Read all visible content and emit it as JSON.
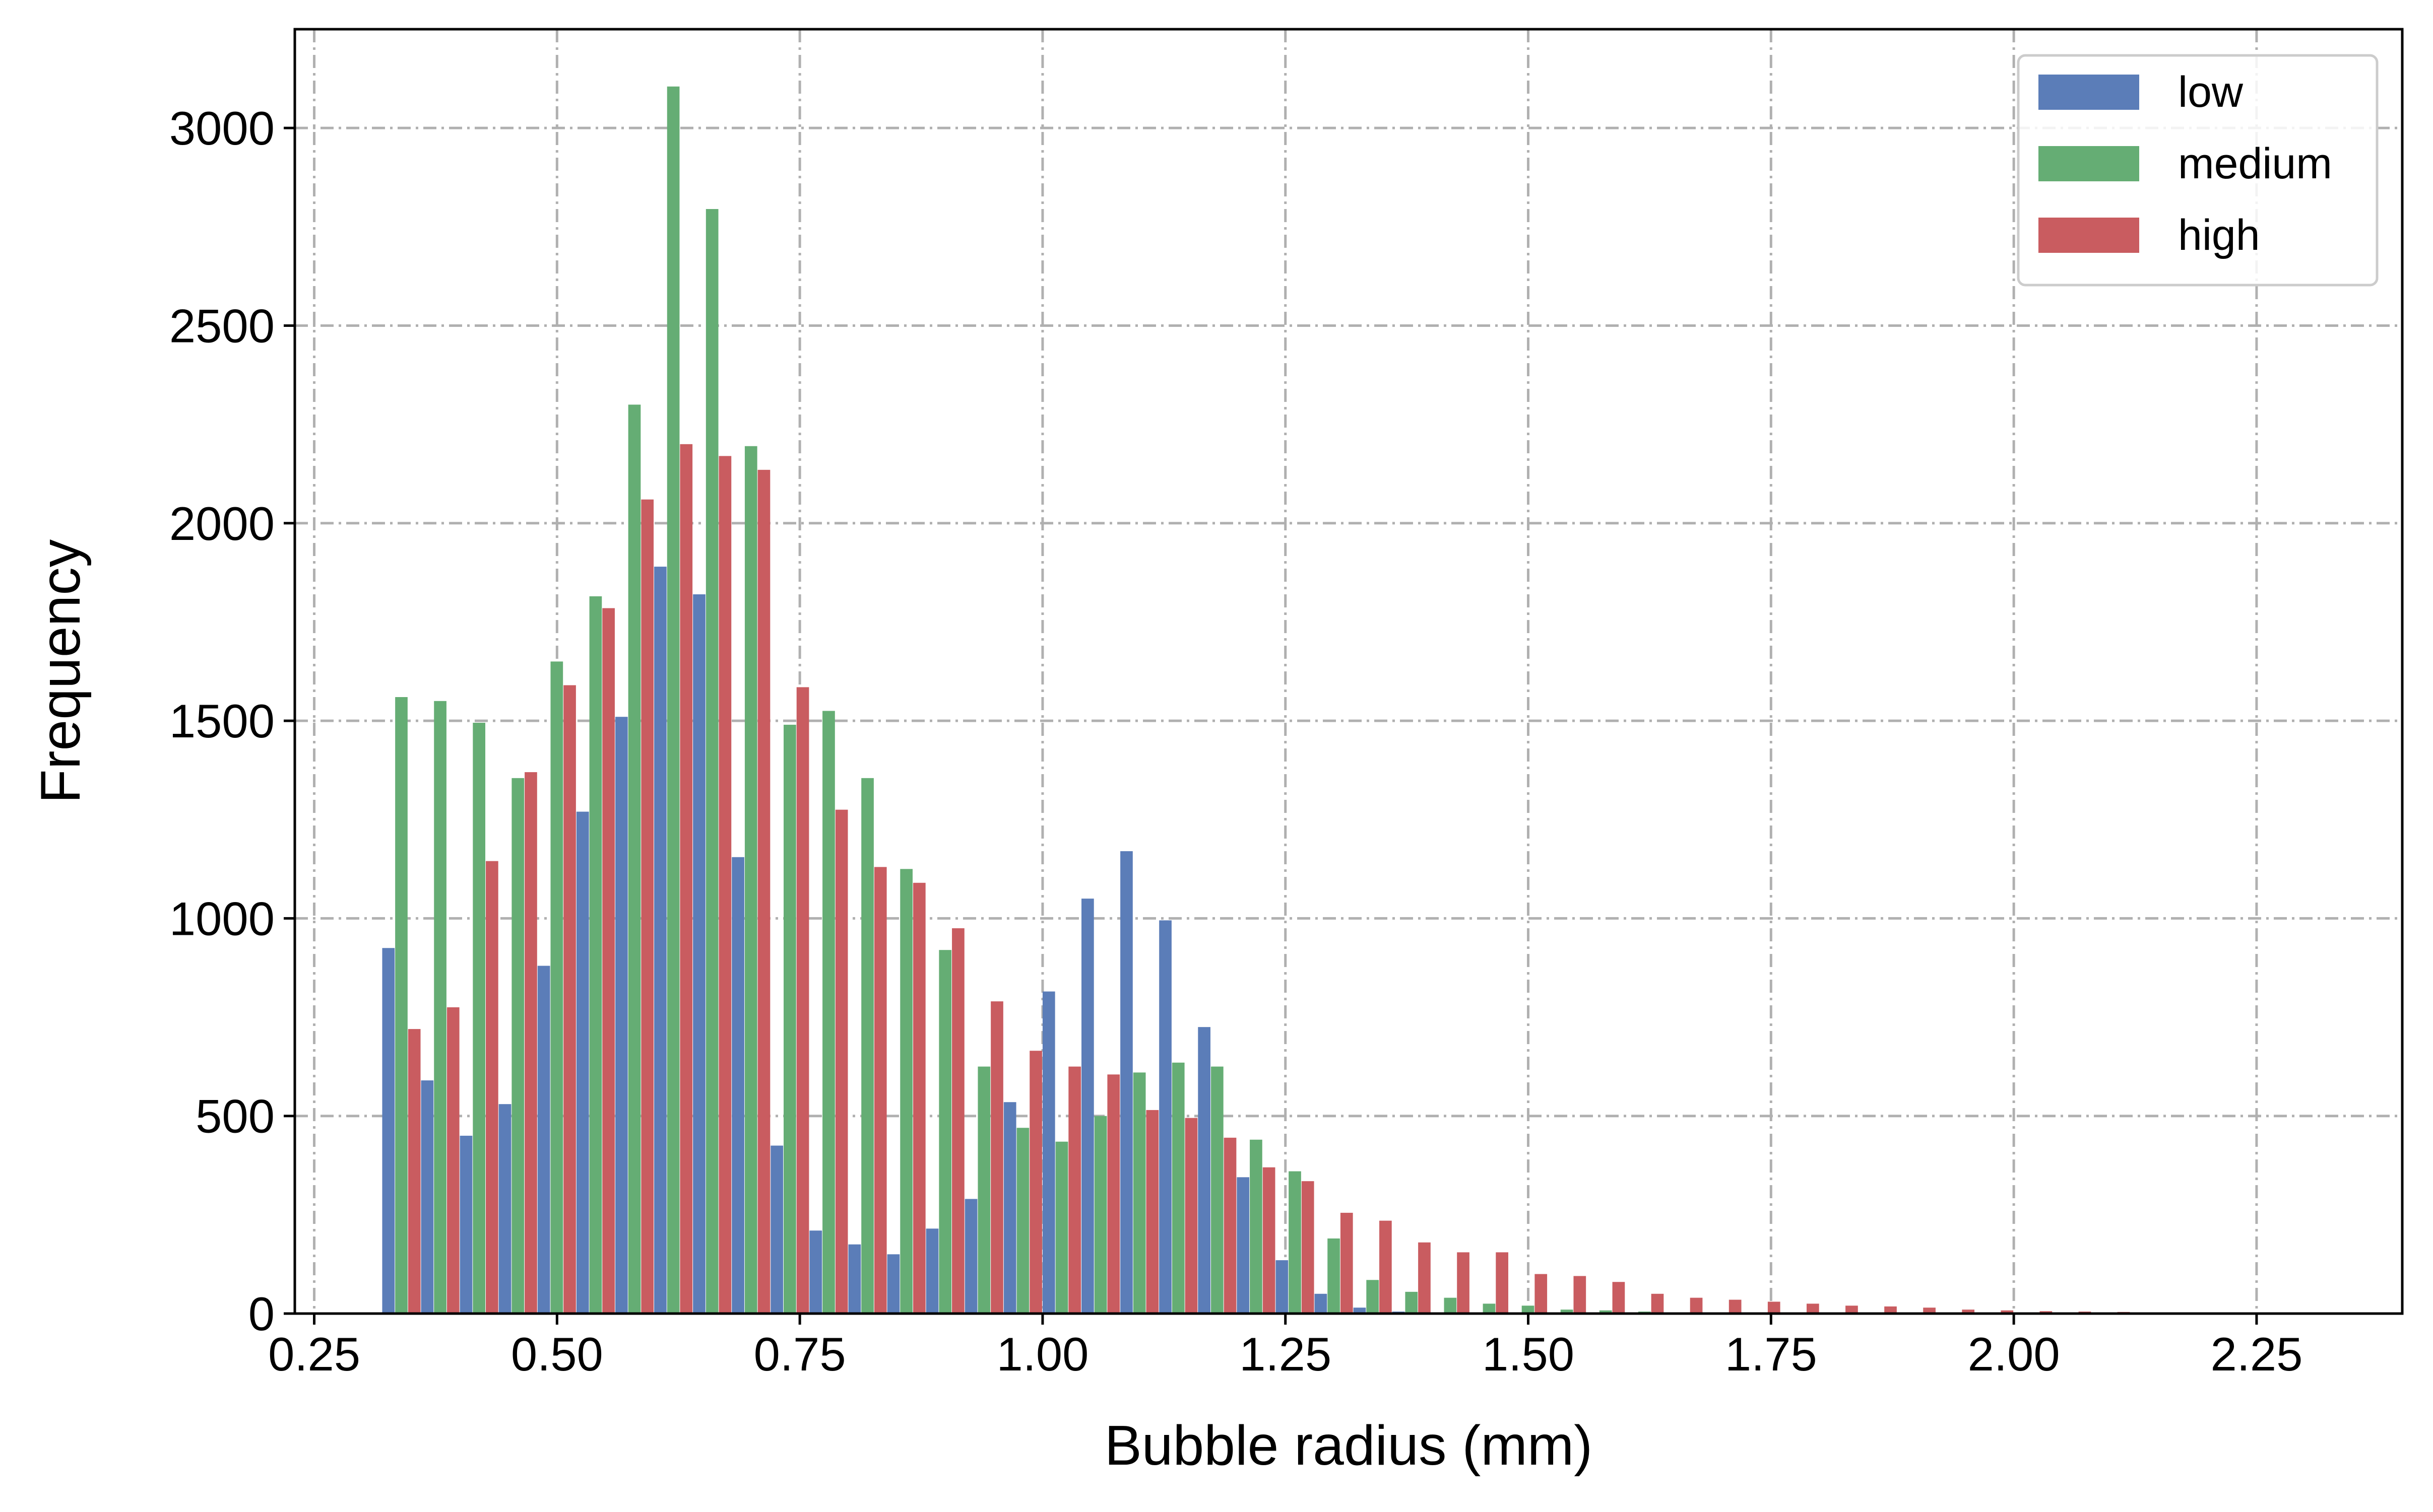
{
  "chart_data": {
    "type": "bar",
    "xlabel": "Bubble radius (mm)",
    "ylabel": "Frequency",
    "xlim": [
      0.23,
      2.4
    ],
    "ylim": [
      0,
      3250
    ],
    "xticks": [
      "0.25",
      "0.50",
      "0.75",
      "1.00",
      "1.25",
      "1.50",
      "1.75",
      "2.00",
      "2.25"
    ],
    "yticks": [
      "0",
      "500",
      "1000",
      "1500",
      "2000",
      "2500",
      "3000"
    ],
    "grid": true,
    "legend_position": "top-right",
    "bin_start": 0.32,
    "bin_width": 0.04,
    "bin_count": 50,
    "series": [
      {
        "name": "low",
        "color": "#5b7db8",
        "values": [
          925,
          590,
          450,
          530,
          880,
          1270,
          1510,
          1890,
          1820,
          1155,
          425,
          210,
          175,
          150,
          215,
          290,
          535,
          815,
          1050,
          1170,
          995,
          725,
          345,
          135,
          50,
          15,
          5,
          2,
          0,
          0,
          0,
          0,
          0,
          0,
          0,
          0,
          0,
          0,
          0,
          0,
          0,
          0,
          0,
          0,
          0,
          0,
          0,
          0,
          0,
          0
        ]
      },
      {
        "name": "medium",
        "color": "#65ad74",
        "values": [
          1560,
          1550,
          1495,
          1355,
          1650,
          1815,
          2300,
          3105,
          2795,
          2195,
          1490,
          1525,
          1355,
          1125,
          920,
          625,
          470,
          435,
          500,
          610,
          635,
          625,
          440,
          360,
          190,
          85,
          55,
          40,
          25,
          20,
          10,
          8,
          5,
          3,
          2,
          1,
          1,
          0,
          0,
          0,
          0,
          0,
          0,
          0,
          0,
          0,
          0,
          0,
          0,
          0
        ]
      },
      {
        "name": "high",
        "color": "#c95c60",
        "values": [
          720,
          775,
          1145,
          1370,
          1590,
          1785,
          2060,
          2200,
          2170,
          2135,
          1585,
          1275,
          1130,
          1090,
          975,
          790,
          665,
          625,
          605,
          515,
          495,
          445,
          370,
          335,
          255,
          235,
          180,
          155,
          155,
          100,
          95,
          80,
          50,
          40,
          35,
          30,
          25,
          20,
          18,
          15,
          10,
          8,
          6,
          5,
          4,
          3,
          2,
          2,
          1,
          1
        ]
      }
    ]
  }
}
